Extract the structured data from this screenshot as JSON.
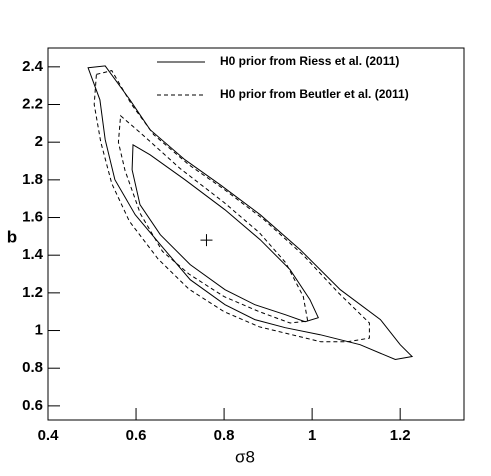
{
  "chart_data": {
    "type": "contour",
    "xlabel": "σ8",
    "ylabel": "b",
    "xlim": [
      0.4,
      1.345
    ],
    "ylim": [
      0.525,
      2.5
    ],
    "xticks": [
      0.4,
      0.6,
      0.8,
      1,
      1.2
    ],
    "yticks": [
      0.6,
      0.8,
      1,
      1.2,
      1.4,
      1.6,
      1.8,
      2,
      2.2,
      2.4
    ],
    "color": "#000000",
    "series": [
      {
        "name": "H0 prior from Riess et al. (2011)",
        "dash": false,
        "contours": [
          {
            "x": [
              0.491,
              0.53,
              0.586,
              0.632,
              0.711,
              0.791,
              0.882,
              0.973,
              1.064,
              1.155,
              1.2,
              1.227,
              1.189,
              1.109,
              1.018,
              0.939,
              0.87,
              0.802,
              0.723,
              0.655,
              0.598,
              0.552,
              0.53,
              0.518
            ],
            "y": [
              2.395,
              2.405,
              2.225,
              2.066,
              1.907,
              1.774,
              1.615,
              1.429,
              1.217,
              1.058,
              0.925,
              0.862,
              0.846,
              0.925,
              0.978,
              1.015,
              1.058,
              1.137,
              1.27,
              1.456,
              1.615,
              1.801,
              2.013,
              2.225
            ]
          },
          {
            "x": [
              0.593,
              0.632,
              0.711,
              0.802,
              0.882,
              0.95,
              0.995,
              1.014,
              0.984,
              0.939,
              0.87,
              0.802,
              0.723,
              0.655,
              0.609,
              0.591
            ],
            "y": [
              1.986,
              1.933,
              1.801,
              1.641,
              1.482,
              1.323,
              1.164,
              1.068,
              1.047,
              1.084,
              1.137,
              1.217,
              1.35,
              1.509,
              1.668,
              1.854
            ]
          }
        ]
      },
      {
        "name": "H0 prior from Beutler et al. (2011)",
        "dash": true,
        "contours": [
          {
            "x": [
              0.51,
              0.545,
              0.59,
              0.64,
              0.72,
              0.8,
              0.89,
              0.98,
              1.06,
              1.13,
              1.13,
              1.08,
              1.02,
              0.95,
              0.88,
              0.8,
              0.72,
              0.65,
              0.585,
              0.545,
              0.52,
              0.505
            ],
            "y": [
              2.36,
              2.38,
              2.2,
              2.04,
              1.88,
              1.75,
              1.59,
              1.4,
              1.2,
              1.04,
              0.96,
              0.94,
              0.94,
              0.98,
              1.02,
              1.1,
              1.22,
              1.38,
              1.58,
              1.78,
              2.0,
              2.2
            ]
          },
          {
            "x": [
              0.565,
              0.61,
              0.7,
              0.8,
              0.88,
              0.94,
              0.98,
              0.99,
              0.95,
              0.88,
              0.8,
              0.72,
              0.66,
              0.61,
              0.575,
              0.56
            ],
            "y": [
              2.14,
              2.05,
              1.86,
              1.68,
              1.52,
              1.36,
              1.18,
              1.05,
              1.04,
              1.1,
              1.18,
              1.3,
              1.42,
              1.62,
              1.85,
              2.0
            ]
          }
        ]
      }
    ],
    "marker": {
      "x": 0.76,
      "y": 1.48
    }
  }
}
